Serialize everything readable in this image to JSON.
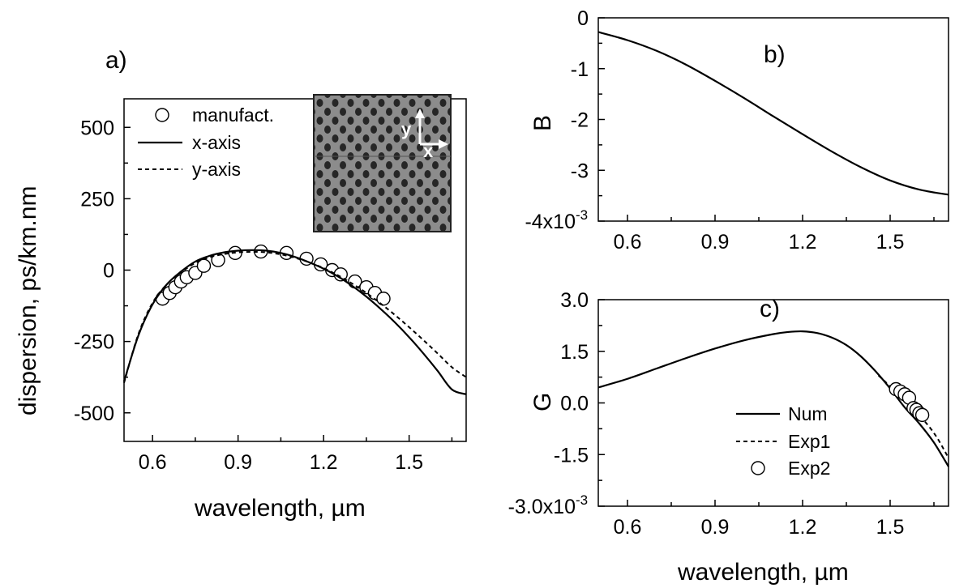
{
  "chart_data": [
    {
      "type": "line",
      "panel_label": "a)",
      "xlabel": "wavelength, µm",
      "ylabel": "dispersion, ps/km.nm",
      "xlim": [
        0.5,
        1.7
      ],
      "ylim": [
        -600,
        600
      ],
      "xticks": [
        0.6,
        0.9,
        1.2,
        1.5
      ],
      "xtick_labels": [
        "0.6",
        "0.9",
        "1.2",
        "1.5"
      ],
      "yticks": [
        500,
        250,
        0,
        -250,
        -500
      ],
      "ytick_labels": [
        "500",
        "250",
        "0",
        "-250",
        "-500"
      ],
      "legend_position": "top-left",
      "inset": "photonic crystal fiber cross-section image with y / x axes arrows",
      "inset_axis_labels": [
        "y",
        "x"
      ],
      "series": [
        {
          "name": "manufact.",
          "style": "circle-markers",
          "x": [
            0.635,
            0.66,
            0.68,
            0.7,
            0.72,
            0.75,
            0.78,
            0.83,
            0.89,
            0.98,
            1.07,
            1.14,
            1.19,
            1.23,
            1.26,
            1.31,
            1.35,
            1.38,
            1.41
          ],
          "y": [
            -100,
            -80,
            -60,
            -40,
            -25,
            -10,
            15,
            35,
            60,
            65,
            60,
            40,
            20,
            0,
            -15,
            -40,
            -60,
            -80,
            -100
          ]
        },
        {
          "name": "x-axis",
          "style": "solid",
          "x": [
            0.5,
            0.55,
            0.6,
            0.65,
            0.7,
            0.75,
            0.8,
            0.85,
            0.9,
            0.95,
            1.0,
            1.05,
            1.1,
            1.15,
            1.2,
            1.25,
            1.3,
            1.35,
            1.4,
            1.45,
            1.5,
            1.55,
            1.6,
            1.65,
            1.7
          ],
          "y": [
            -390,
            -230,
            -120,
            -50,
            -5,
            30,
            50,
            62,
            68,
            70,
            68,
            60,
            46,
            27,
            5,
            -22,
            -55,
            -93,
            -136,
            -183,
            -235,
            -292,
            -353,
            -418,
            -435
          ]
        },
        {
          "name": "y-axis",
          "style": "dashed",
          "x": [
            0.5,
            0.55,
            0.6,
            0.65,
            0.7,
            0.75,
            0.8,
            0.85,
            0.9,
            0.95,
            1.0,
            1.05,
            1.1,
            1.15,
            1.2,
            1.25,
            1.3,
            1.35,
            1.4,
            1.45,
            1.5,
            1.55,
            1.6,
            1.65,
            1.7
          ],
          "y": [
            -395,
            -225,
            -115,
            -50,
            -8,
            25,
            45,
            56,
            62,
            64,
            62,
            55,
            43,
            27,
            7,
            -18,
            -47,
            -80,
            -117,
            -157,
            -200,
            -245,
            -292,
            -340,
            -375
          ]
        }
      ]
    },
    {
      "type": "line",
      "panel_label": "b)",
      "xlabel": "",
      "ylabel": "B",
      "xlim": [
        0.5,
        1.7
      ],
      "ylim": [
        -4,
        0
      ],
      "xticks": [
        0.6,
        0.9,
        1.2,
        1.5
      ],
      "xtick_labels": [
        "0.6",
        "0.9",
        "1.2",
        "1.5"
      ],
      "yticks": [
        0,
        -1,
        -2,
        -3,
        -4
      ],
      "ytick_labels": [
        "0",
        "-1",
        "-2",
        "-3",
        "-4x10"
      ],
      "ytick_exponent": "-3",
      "series": [
        {
          "style": "solid",
          "x": [
            0.5,
            0.6,
            0.7,
            0.8,
            0.9,
            1.0,
            1.1,
            1.2,
            1.3,
            1.4,
            1.5,
            1.6,
            1.7
          ],
          "y": [
            -0.28,
            -0.44,
            -0.65,
            -0.92,
            -1.24,
            -1.58,
            -1.94,
            -2.29,
            -2.63,
            -2.94,
            -3.2,
            -3.38,
            -3.48
          ]
        }
      ]
    },
    {
      "type": "line",
      "panel_label": "c)",
      "xlabel": "wavelength, µm",
      "ylabel": "G",
      "xlim": [
        0.5,
        1.7
      ],
      "ylim": [
        -3.0,
        3.0
      ],
      "xticks": [
        0.6,
        0.9,
        1.2,
        1.5
      ],
      "xtick_labels": [
        "0.6",
        "0.9",
        "1.2",
        "1.5"
      ],
      "yticks": [
        3.0,
        1.5,
        0.0,
        -1.5,
        -3.0
      ],
      "ytick_labels": [
        "3.0",
        "1.5",
        "0.0",
        "-1.5",
        "-3.0x10"
      ],
      "ytick_exponent": "-3",
      "legend_position": "bottom-center",
      "series": [
        {
          "name": "Num",
          "style": "solid",
          "x": [
            0.5,
            0.6,
            0.7,
            0.8,
            0.9,
            1.0,
            1.1,
            1.15,
            1.2,
            1.25,
            1.3,
            1.35,
            1.4,
            1.45,
            1.5,
            1.55,
            1.6,
            1.65,
            1.7
          ],
          "y": [
            0.45,
            0.7,
            1.0,
            1.3,
            1.58,
            1.82,
            2.0,
            2.06,
            2.08,
            2.03,
            1.9,
            1.68,
            1.35,
            0.92,
            0.42,
            -0.13,
            -0.6,
            -1.15,
            -1.85
          ]
        },
        {
          "name": "Exp1",
          "style": "dashed",
          "x": [
            1.46,
            1.5,
            1.54,
            1.58,
            1.62,
            1.66,
            1.7
          ],
          "y": [
            0.8,
            0.48,
            0.15,
            -0.2,
            -0.55,
            -1.0,
            -1.6
          ]
        },
        {
          "name": "Exp2",
          "style": "circle-markers",
          "x": [
            1.52,
            1.535,
            1.55,
            1.565,
            1.58,
            1.59,
            1.6,
            1.61
          ],
          "y": [
            0.4,
            0.33,
            0.25,
            0.15,
            -0.15,
            -0.2,
            -0.3,
            -0.35
          ]
        }
      ]
    }
  ]
}
